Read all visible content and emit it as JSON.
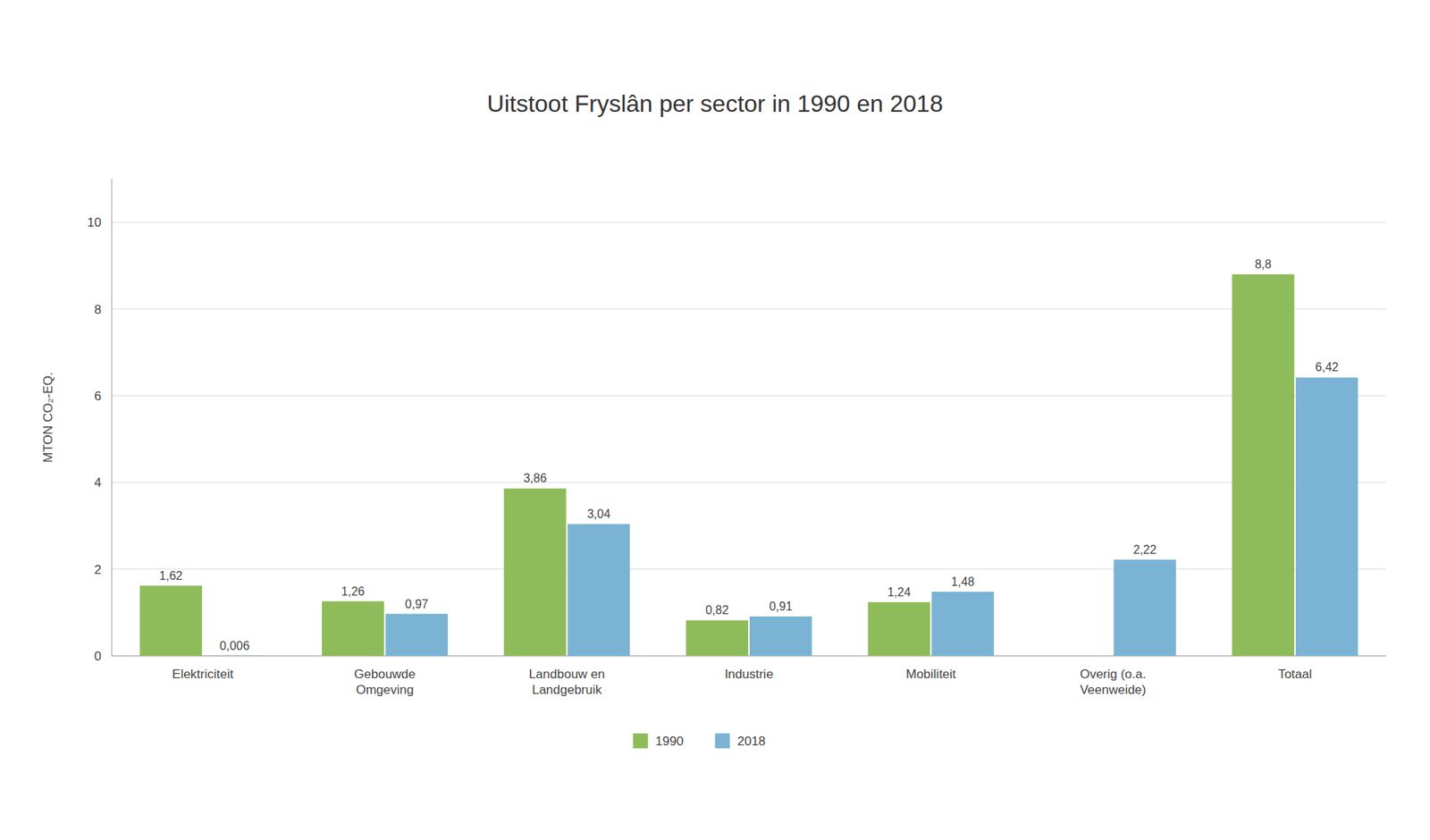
{
  "chart_data": {
    "type": "bar",
    "title": "Uitstoot Fryslân per sector in 1990 en 2018",
    "categories": [
      "Elektriciteit",
      "Gebouwde\nOmgeving",
      "Landbouw en\nLandgebruik",
      "Industrie",
      "Mobiliteit",
      "Overig (o.a.\nVeenweide)",
      "Totaal"
    ],
    "series": [
      {
        "name": "1990",
        "color": "#8fbc5a",
        "values": [
          1.62,
          1.26,
          3.86,
          0.82,
          1.24,
          0,
          8.8
        ],
        "value_labels": [
          "1,62",
          "1,26",
          "3,86",
          "0,82",
          "1,24",
          null,
          "8,8"
        ]
      },
      {
        "name": "2018",
        "color": "#7ab3d3",
        "values": [
          0.006,
          0.97,
          3.04,
          0.91,
          1.48,
          2.22,
          6.42
        ],
        "value_labels": [
          "0,006",
          "0,97",
          "3,04",
          "0,91",
          "1,48",
          "2,22",
          "6,42"
        ]
      }
    ],
    "ylabel": "MTON CO₂-EQ.",
    "ylim": [
      0,
      11
    ],
    "yticks": [
      0,
      2,
      4,
      6,
      8,
      10
    ],
    "grid": true,
    "data_labels": true,
    "legend": "bottom"
  }
}
